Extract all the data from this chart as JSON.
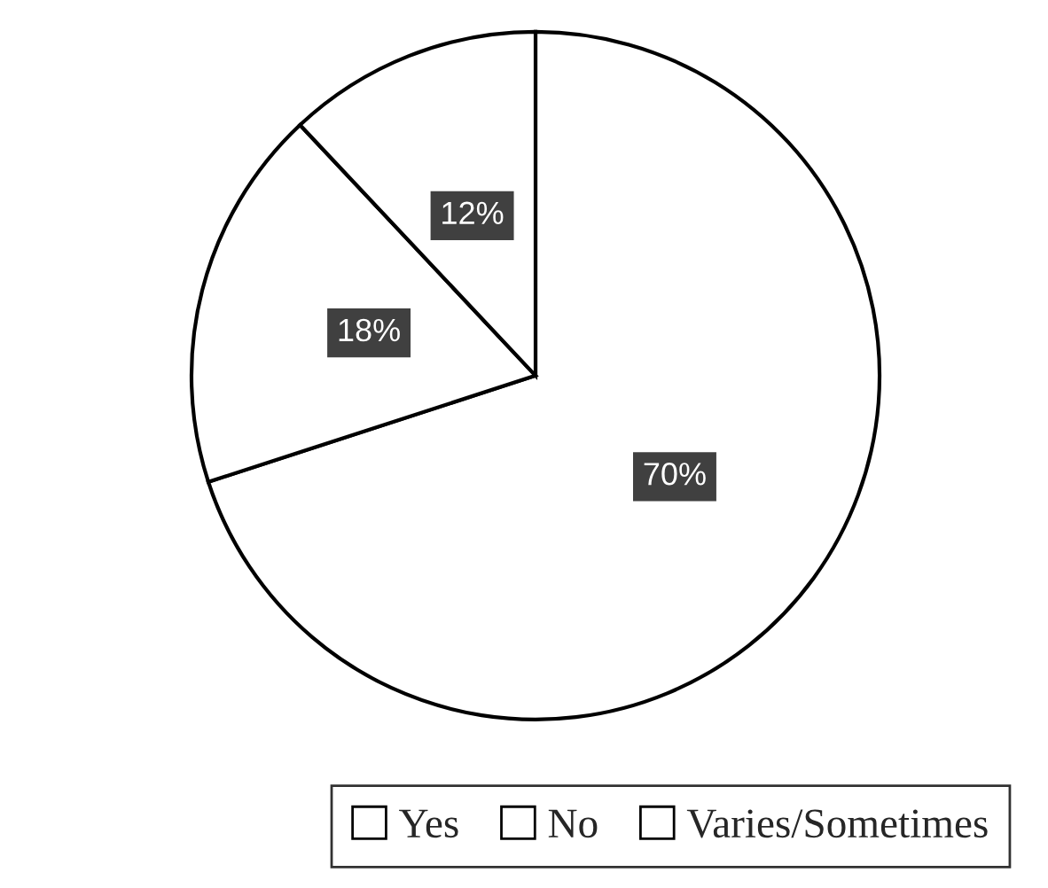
{
  "chart_data": {
    "type": "pie",
    "categories": [
      "Yes",
      "No",
      "Varies/Sometimes"
    ],
    "values": [
      70,
      18,
      12
    ],
    "colors": [
      "#ffffff",
      "#ffffff",
      "#ffffff"
    ],
    "value_labels": [
      "70%",
      "18%",
      "12%"
    ],
    "legend": "bottom"
  }
}
